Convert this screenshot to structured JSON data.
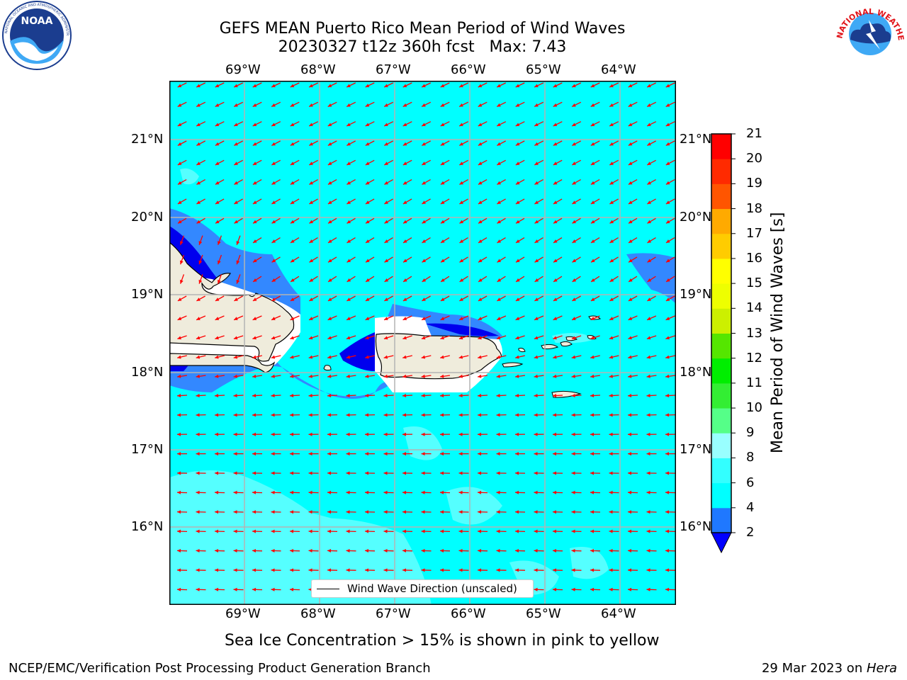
{
  "header": {
    "title_line1": "GEFS MEAN Puerto Rico Mean Period of Wind Waves",
    "title_line2": "20230327 t12z 360h fcst   Max: 7.43"
  },
  "logos": {
    "left_text": "NOAA",
    "left_ring_text": "NATIONAL OCEANIC AND ATMOSPHERIC ADMINISTRATION · U.S. DEPARTMENT OF COMMERCE",
    "right_ring_text": "NATIONAL WEATHER SERVICE"
  },
  "map": {
    "lon_labels": [
      "69°W",
      "68°W",
      "67°W",
      "66°W",
      "65°W",
      "64°W"
    ],
    "lat_labels": [
      "21°N",
      "20°N",
      "19°N",
      "18°N",
      "17°N",
      "16°N"
    ],
    "legend_label": "Wind Wave Direction (unscaled)",
    "colors": {
      "ocean": "#00ffff",
      "light": "#55ffff",
      "mid_blue": "#3388ff",
      "dark_blue": "#0000ee",
      "land": "#efecdc",
      "arrow": "#ff0000"
    }
  },
  "colorbar": {
    "label": "Mean Period of Wind Waves [s]",
    "ticks": [
      "2",
      "4",
      "6",
      "8",
      "9",
      "10",
      "11",
      "12",
      "13",
      "14",
      "15",
      "16",
      "17",
      "18",
      "19",
      "20",
      "21"
    ],
    "colors": [
      "#1f78ff",
      "#00ffff",
      "#33ffff",
      "#66ffff",
      "#99ffff",
      "#55ff88",
      "#33ee33",
      "#00ee00",
      "#55e600",
      "#aaee00",
      "#ccf000",
      "#eeff00",
      "#ffff00",
      "#ffcc00",
      "#ffaa00",
      "#ff8800",
      "#ff5500",
      "#ff2a00",
      "#ff0000"
    ]
  },
  "caption": "Sea Ice Concentration > 15% is shown in pink to yellow",
  "footer": {
    "left": "NCEP/EMC/Verification Post Processing Product Generation Branch",
    "right_prefix": "29 Mar 2023 on ",
    "right_italic": "Hera"
  }
}
